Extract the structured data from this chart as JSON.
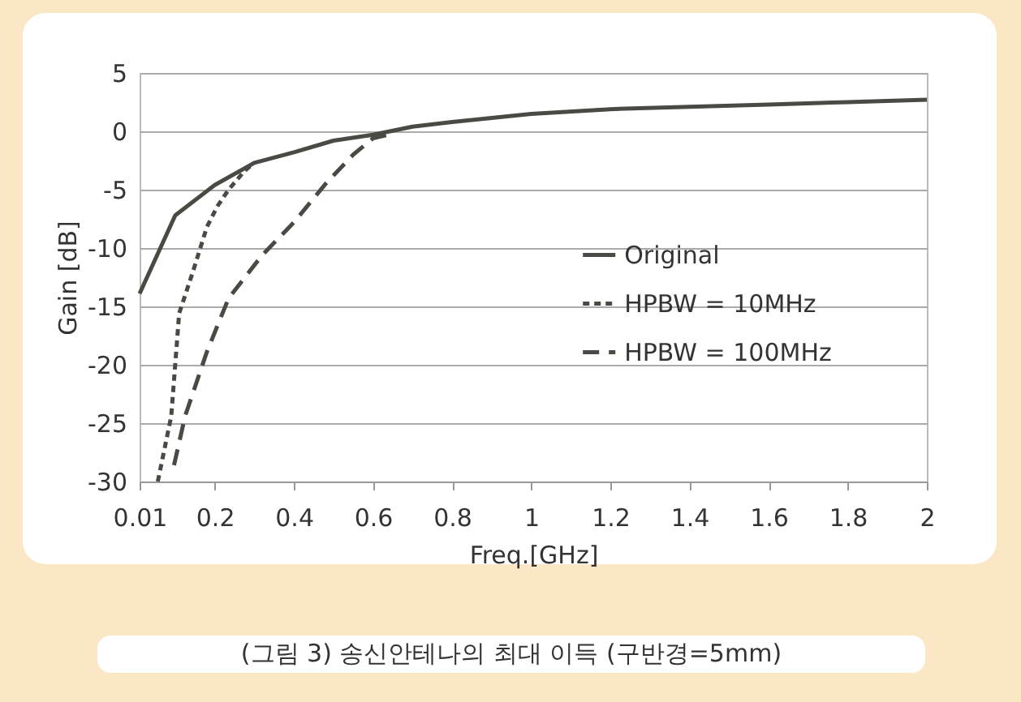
{
  "chart_data": {
    "type": "line",
    "xlabel": "Freq.[GHz]",
    "ylabel": "Gain [dB]",
    "annotations": [
      "(그림 3) 송신안테나의 최대 이득 (구반경=5mm)"
    ],
    "xlim": [
      0.01,
      2
    ],
    "xticks": [
      0.01,
      0.2,
      0.4,
      0.6,
      0.8,
      1,
      1.2,
      1.4,
      1.6,
      1.8,
      2
    ],
    "ylim": [
      -30,
      5
    ],
    "yticks": [
      -30,
      -25,
      -20,
      -15,
      -10,
      -5,
      0,
      5
    ],
    "grid": "y",
    "legend": "right",
    "series": [
      {
        "name": "Original",
        "color": "#4a4a44",
        "line_style": "solid",
        "x": [
          0.01,
          0.1,
          0.2,
          0.3,
          0.4,
          0.5,
          0.6,
          0.7,
          0.8,
          1,
          1.2,
          1.4,
          1.6,
          1.8,
          2
        ],
        "values": [
          -13.9,
          -7.2,
          -4.6,
          -2.7,
          -1.8,
          -0.8,
          -0.3,
          0.4,
          0.8,
          1.5,
          1.9,
          2.1,
          2.3,
          2.5,
          2.7
        ]
      },
      {
        "name": "HPBW = 10MHz",
        "color": "#4a4a44",
        "line_style": "dotted",
        "x": [
          0.056,
          0.09,
          0.11,
          0.145,
          0.18,
          0.207,
          0.235,
          0.275,
          0.3
        ],
        "values": [
          -30,
          -24.4,
          -15.6,
          -12,
          -8.2,
          -6.4,
          -5,
          -3.4,
          -2.7
        ]
      },
      {
        "name": "HPBW = 100MHz",
        "color": "#4a4a44",
        "line_style": "dashed",
        "x": [
          0.097,
          0.125,
          0.18,
          0.235,
          0.32,
          0.4,
          0.48,
          0.55,
          0.6,
          0.65
        ],
        "values": [
          -28.6,
          -24.4,
          -18.9,
          -14.3,
          -10.6,
          -7.8,
          -4.5,
          -2,
          -0.6,
          -0.2
        ]
      }
    ]
  }
}
